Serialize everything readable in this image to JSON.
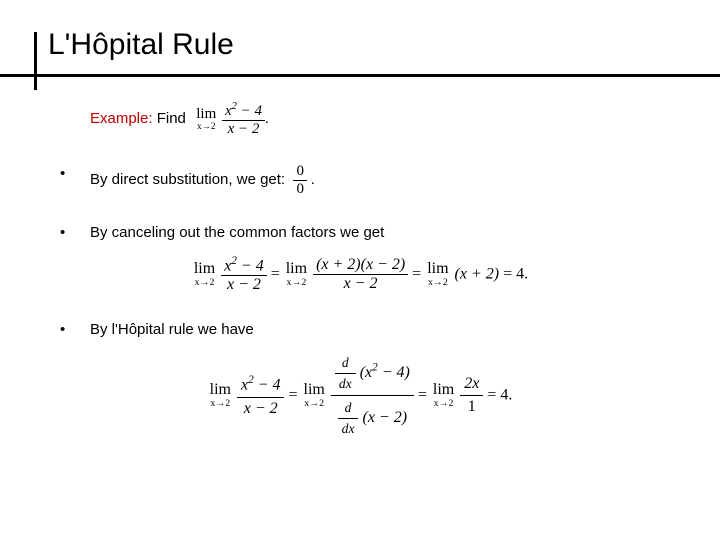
{
  "title": "L'Hôpital Rule",
  "example": {
    "label": "Example:",
    "find": "Find",
    "limit_expr": {
      "approach": "x→2",
      "num": "x² − 4",
      "den": "x − 2",
      "tail": "."
    }
  },
  "bullet1": {
    "text": "By direct substitution, we get:",
    "frac": {
      "num": "0",
      "den": "0"
    },
    "tail": "."
  },
  "bullet2": {
    "text": "By canceling out the common factors we get",
    "eq": {
      "lhs": {
        "approach": "x→2",
        "num": "x² − 4",
        "den": "x − 2"
      },
      "mid": {
        "approach": "x→2",
        "num": "(x + 2)(x − 2)",
        "den": "x − 2"
      },
      "rhs": {
        "approach": "x→2",
        "expr": "(x + 2)"
      },
      "result": "= 4."
    }
  },
  "bullet3": {
    "text": "By l'Hôpital rule we have",
    "eq": {
      "lhs": {
        "approach": "x→2",
        "num": "x² − 4",
        "den": "x − 2"
      },
      "mid": {
        "approach": "x→2",
        "dnum": "(x² − 4)",
        "dden": "(x − 2)"
      },
      "rhs": {
        "approach": "x→2",
        "num": "2x",
        "den": "1"
      },
      "result": "= 4."
    }
  },
  "colors": {
    "example_label": "#c00000",
    "rule": "#000000",
    "text": "#000000",
    "background": "#ffffff"
  },
  "glyphs": {
    "bullet": "•",
    "ddx_label": "d",
    "dx": "dx"
  }
}
